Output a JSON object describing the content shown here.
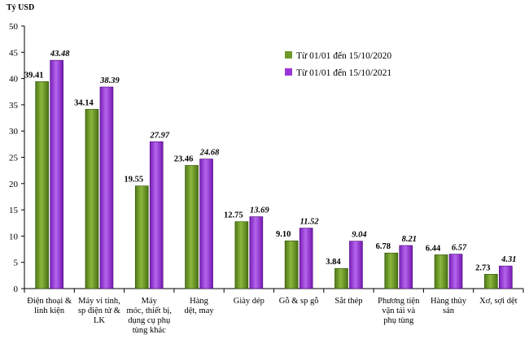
{
  "chart_data": {
    "type": "bar",
    "ylabel": "Tỷ USD",
    "ylim": [
      0,
      50
    ],
    "yticks": [
      0,
      5,
      10,
      15,
      20,
      25,
      30,
      35,
      40,
      45,
      50
    ],
    "grid": false,
    "legend_position": "top-right",
    "categories": [
      [
        "Điện thoại &",
        "linh kiện"
      ],
      [
        "Máy vi tính,",
        "sp điện tử &",
        "LK"
      ],
      [
        "Máy",
        "móc, thiết bị,",
        "dụng cụ phụ",
        "tùng khác"
      ],
      [
        "Hàng",
        "dệt, may"
      ],
      [
        "Giày dép"
      ],
      [
        "Gỗ & sp gỗ"
      ],
      [
        "Sắt thép"
      ],
      [
        "Phương tiện",
        "vận tải và",
        "phụ tùng"
      ],
      [
        "Hàng thủy",
        "sản"
      ],
      [
        "Xơ, sợi dệt"
      ]
    ],
    "series": [
      {
        "name": "Từ 01/01 đến 15/10/2020",
        "color": "#6f9a2a",
        "values": [
          39.41,
          34.14,
          19.55,
          23.46,
          12.75,
          9.1,
          3.84,
          6.78,
          6.44,
          2.73
        ],
        "labels": [
          "39.41",
          "34.14",
          "19.55",
          "23.46",
          "12.75",
          "9.10",
          "3.84",
          "6.78",
          "6.44",
          "2.73"
        ]
      },
      {
        "name": "Từ 01/01 đến 15/10/2021",
        "color": "#9b36d6",
        "values": [
          43.48,
          38.39,
          27.97,
          24.68,
          13.69,
          11.52,
          9.04,
          8.21,
          6.57,
          4.31
        ],
        "labels": [
          "43.48",
          "38.39",
          "27.97",
          "24.68",
          "13.69",
          "11.52",
          "9.04",
          "8.21",
          "6.57",
          "4.31"
        ]
      }
    ]
  }
}
